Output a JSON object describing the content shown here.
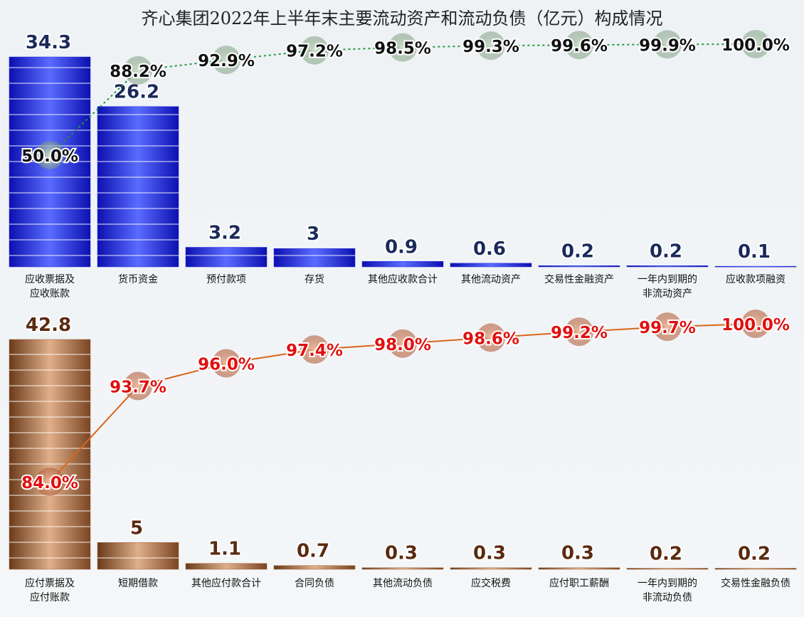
{
  "chart_data": [
    {
      "type": "bar-line",
      "title": "齐心集团2022年上半年末主要流动资产和流动负债（亿元）构成情况",
      "categories": [
        "应收票据及\n应收账款",
        "货币资金",
        "预付款项",
        "存货",
        "其他应收款合计",
        "其他流动资产",
        "交易性金融资产",
        "一年内到期的\n非流动资产",
        "应收款项融资"
      ],
      "series": [
        {
          "type": "bar",
          "color": "#2a2ee0",
          "values": [
            34.3,
            26.2,
            3.2,
            3.0,
            0.9,
            0.6,
            0.2,
            0.2,
            0.1
          ]
        },
        {
          "type": "line",
          "color": "#1e9a3a",
          "axis": "y2",
          "values": [
            50.0,
            88.2,
            92.9,
            97.2,
            98.5,
            99.3,
            99.6,
            99.9,
            100.0
          ],
          "value_labels": [
            "50.0%",
            "88.2%",
            "92.9%",
            "97.2%",
            "98.5%",
            "99.3%",
            "99.6%",
            "99.9%",
            "100.0%"
          ]
        }
      ]
    },
    {
      "type": "bar-line",
      "categories": [
        "应付票据及\n应付账款",
        "短期借款",
        "其他应付款合计",
        "合同负债",
        "其他流动负债",
        "应交税费",
        "应付职工薪酬",
        "一年内到期的\n非流动负债",
        "交易性金融负债"
      ],
      "series": [
        {
          "type": "bar",
          "color": "#a0643a",
          "values": [
            42.8,
            5.0,
            1.1,
            0.7,
            0.3,
            0.3,
            0.3,
            0.2,
            0.2
          ]
        },
        {
          "type": "line",
          "color": "#d9661a",
          "axis": "y2",
          "values": [
            84.0,
            93.7,
            96.0,
            97.4,
            98.0,
            98.6,
            99.2,
            99.7,
            100.0
          ],
          "value_labels": [
            "84.0%",
            "93.7%",
            "96.0%",
            "97.4%",
            "98.0%",
            "98.6%",
            "99.2%",
            "99.7%",
            "100.0%"
          ]
        }
      ]
    }
  ]
}
